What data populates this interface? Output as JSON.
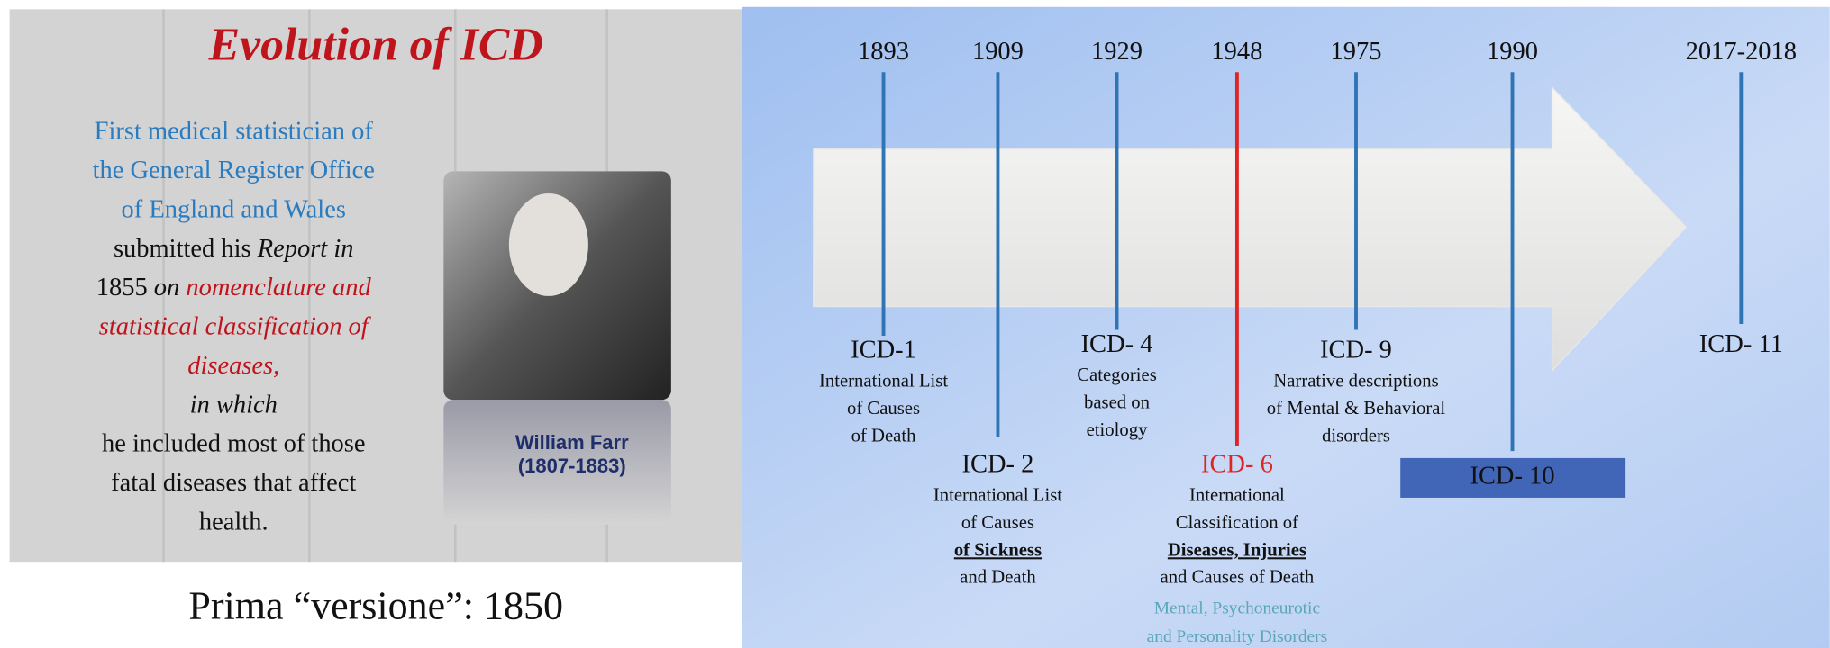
{
  "left_slide": {
    "title": "Evolution of ICD",
    "text_lines": [
      [
        {
          "text": "First medical statistician of",
          "color": "#2a7bbf"
        }
      ],
      [
        {
          "text": "the General Register Office",
          "color": "#2a7bbf"
        }
      ],
      [
        {
          "text": "of England and Wales",
          "color": "#2a7bbf"
        }
      ],
      [
        {
          "text": "submitted his "
        },
        {
          "text": "Report in",
          "italic": true
        }
      ],
      [
        {
          "text": "1855 "
        },
        {
          "text": "on ",
          "italic": true
        },
        {
          "text": "nomenclature and",
          "italic": true,
          "color": "#c0141c"
        }
      ],
      [
        {
          "text": "statistical classification of",
          "italic": true,
          "color": "#c0141c"
        }
      ],
      [
        {
          "text": "diseases,",
          "italic": true,
          "color": "#c0141c"
        }
      ],
      [
        {
          "text": "in which",
          "italic": true
        }
      ],
      [
        {
          "text": "he included most of those"
        }
      ],
      [
        {
          "text": "fatal diseases that affect"
        }
      ],
      [
        {
          "text": "health."
        }
      ]
    ],
    "portrait_caption": [
      "William Farr",
      "(1807-1883)"
    ],
    "caption": "Prima “versione”:  1850"
  },
  "timeline": [
    {
      "year": "1893",
      "label": "ICD-1",
      "description": [
        "International List",
        "of Causes",
        "of Death"
      ]
    },
    {
      "year": "1909",
      "label": "ICD- 2",
      "description": [
        "International List",
        "of Causes",
        {
          "text": "of Sickness",
          "bold": true,
          "underline": true
        },
        "and Death"
      ]
    },
    {
      "year": "1929",
      "label": "ICD- 4",
      "description": [
        "Categories",
        "based on",
        "etiology"
      ]
    },
    {
      "year": "1948",
      "label": "ICD- 6",
      "color": "#e02424",
      "description": [
        "International",
        "Classification of",
        {
          "text": "Diseases, Injuries",
          "bold": true,
          "underline": true
        },
        "and Causes of Death"
      ],
      "note": [
        "Mental, Psychoneurotic",
        "and Personality Disorders"
      ],
      "note_color": "#5aa6b8"
    },
    {
      "year": "1975",
      "label": "ICD- 9",
      "description": [
        "Narrative descriptions",
        "of Mental & Behavioral",
        "disorders"
      ]
    },
    {
      "year": "1990",
      "label": "ICD- 10",
      "boxed": true,
      "description": []
    },
    {
      "year": "2017-2018",
      "label": "ICD- 11",
      "description": []
    }
  ]
}
